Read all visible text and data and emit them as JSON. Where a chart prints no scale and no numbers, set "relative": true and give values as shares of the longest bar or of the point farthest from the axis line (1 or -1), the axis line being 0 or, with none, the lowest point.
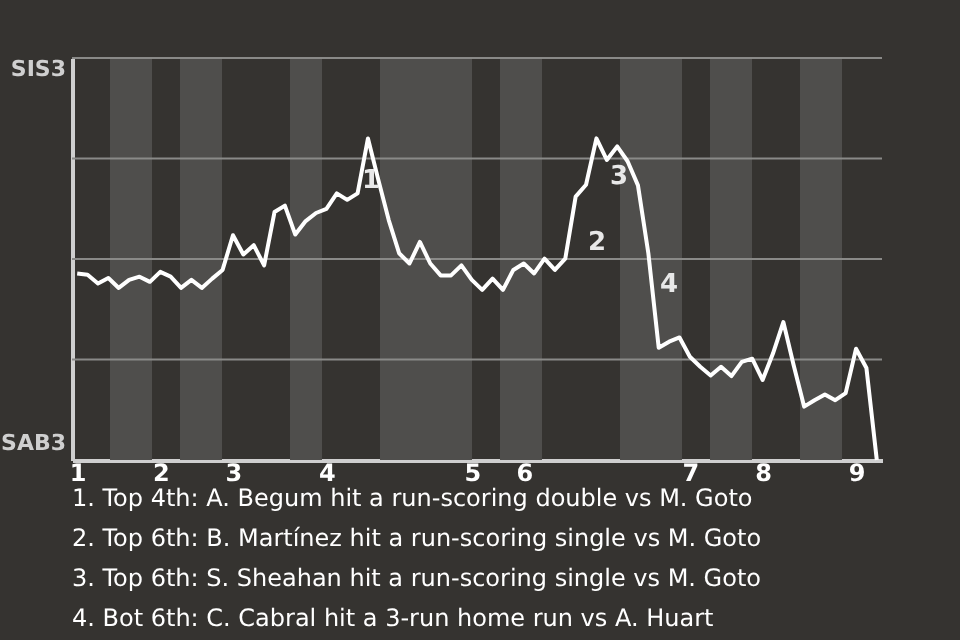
{
  "chart_data": {
    "type": "line",
    "relative": true,
    "categories": [
      "1",
      null,
      null,
      null,
      null,
      null,
      null,
      null,
      "2",
      null,
      null,
      null,
      null,
      null,
      null,
      "3",
      null,
      null,
      null,
      null,
      null,
      null,
      null,
      null,
      "4",
      null,
      null,
      null,
      null,
      null,
      null,
      null,
      null,
      null,
      null,
      null,
      null,
      null,
      "5",
      null,
      null,
      null,
      null,
      "6",
      null,
      null,
      null,
      null,
      null,
      null,
      null,
      null,
      null,
      null,
      null,
      null,
      null,
      null,
      null,
      "7",
      null,
      null,
      null,
      null,
      null,
      null,
      "8",
      null,
      null,
      null,
      null,
      null,
      null,
      null,
      null,
      "9",
      null,
      null
    ],
    "series": [
      {
        "color": "#ffffff",
        "values": [
          0.58,
          0.576,
          0.549,
          0.566,
          0.535,
          0.56,
          0.57,
          0.554,
          0.585,
          0.57,
          0.535,
          0.56,
          0.535,
          0.564,
          0.591,
          0.699,
          0.639,
          0.668,
          0.605,
          0.771,
          0.791,
          0.701,
          0.743,
          0.768,
          0.781,
          0.829,
          0.809,
          0.829,
          1,
          0.871,
          0.746,
          0.643,
          0.611,
          0.678,
          0.611,
          0.574,
          0.574,
          0.605,
          0.56,
          0.529,
          0.564,
          0.529,
          0.591,
          0.611,
          0.58,
          0.626,
          0.591,
          0.626,
          0.819,
          0.856,
          1,
          0.933,
          0.975,
          0.929,
          0.854,
          0.643,
          0.349,
          0.368,
          0.381,
          0.321,
          0.29,
          0.263,
          0.29,
          0.261,
          0.305,
          0.315,
          0.249,
          0.331,
          0.429,
          0.294,
          0.166,
          0.186,
          0.204,
          0.186,
          0.208,
          0.346,
          0.286,
          0
        ]
      }
    ],
    "grid": "y",
    "annotations": [
      "SIS3",
      "SAB3",
      "1",
      "2",
      "3",
      "4",
      "1. Top 4th: A. Begum hit a run-scoring double vs M. Goto",
      "2. Top 6th: B. Martínez hit a run-scoring single vs M. Goto",
      "3. Top 6th: S. Sheahan hit a run-scoring single vs M. Goto",
      "4. Bot 6th: C. Cabral hit a 3-run home run vs A. Huart"
    ]
  }
}
